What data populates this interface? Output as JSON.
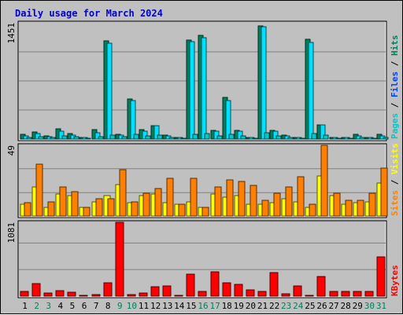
{
  "title": "Daily usage for March 2024",
  "colors": {
    "background": "#c0c0c0",
    "title": "#0000ff",
    "hits": "#00805c",
    "files": "#00e0ff",
    "pages": "#00c8c8",
    "visits": "#ffff00",
    "sites": "#ff8000",
    "kbytes": "#ff0000",
    "weekend_label": "#00805c",
    "weekday_label": "#000000"
  },
  "chart_data": [
    {
      "type": "bar",
      "panel": "hits-files-pages",
      "ymax_label": "1451",
      "ylim": [
        0,
        1451
      ],
      "legend": [
        {
          "text": "Pages",
          "color": "#00c8c8"
        },
        {
          "text": "Files",
          "color": "#0040ff"
        },
        {
          "text": "Hits",
          "color": "#00805c"
        }
      ],
      "categories": [
        "1",
        "2",
        "3",
        "4",
        "5",
        "6",
        "7",
        "8",
        "9",
        "10",
        "11",
        "12",
        "13",
        "14",
        "15",
        "16",
        "17",
        "18",
        "19",
        "20",
        "21",
        "22",
        "23",
        "24",
        "25",
        "26",
        "27",
        "28",
        "29",
        "30",
        "31"
      ],
      "series": [
        {
          "name": "Hits",
          "values": [
            60,
            90,
            40,
            130,
            70,
            20,
            120,
            1230,
            60,
            500,
            120,
            170,
            50,
            20,
            1240,
            1290,
            110,
            520,
            110,
            20,
            1410,
            110,
            50,
            20,
            1250,
            180,
            20,
            20,
            60,
            20,
            60
          ]
        },
        {
          "name": "Files",
          "values": [
            40,
            70,
            30,
            100,
            50,
            15,
            80,
            1200,
            50,
            480,
            100,
            170,
            40,
            15,
            1220,
            1260,
            100,
            480,
            100,
            15,
            1400,
            100,
            40,
            15,
            1210,
            180,
            15,
            15,
            40,
            15,
            40
          ]
        },
        {
          "name": "Pages",
          "values": [
            20,
            30,
            15,
            40,
            25,
            8,
            30,
            50,
            25,
            60,
            40,
            50,
            20,
            8,
            60,
            70,
            40,
            60,
            40,
            8,
            80,
            40,
            20,
            8,
            70,
            50,
            8,
            8,
            20,
            8,
            20
          ]
        }
      ]
    },
    {
      "type": "bar",
      "panel": "visits-sites",
      "ymax_label": "49",
      "ylim": [
        0,
        49
      ],
      "legend": [
        {
          "text": "Sites",
          "color": "#ff8000"
        },
        {
          "text": "Visits",
          "color": "#ffff00"
        }
      ],
      "categories": [
        "1",
        "2",
        "3",
        "4",
        "5",
        "6",
        "7",
        "8",
        "9",
        "10",
        "11",
        "12",
        "13",
        "14",
        "15",
        "16",
        "17",
        "18",
        "19",
        "20",
        "21",
        "22",
        "23",
        "24",
        "25",
        "26",
        "27",
        "28",
        "29",
        "30",
        "31"
      ],
      "series": [
        {
          "name": "Visits",
          "values": [
            8,
            20,
            6,
            15,
            14,
            6,
            10,
            14,
            22,
            9,
            14,
            15,
            9,
            8,
            10,
            6,
            15,
            13,
            14,
            8,
            8,
            9,
            12,
            10,
            6,
            28,
            14,
            8,
            9,
            10,
            23
          ]
        },
        {
          "name": "Sites",
          "values": [
            9,
            36,
            10,
            20,
            17,
            6,
            12,
            12,
            32,
            10,
            16,
            19,
            26,
            8,
            26,
            6,
            20,
            25,
            24,
            21,
            11,
            16,
            20,
            27,
            8,
            49,
            16,
            11,
            11,
            16,
            33
          ]
        }
      ]
    },
    {
      "type": "bar",
      "panel": "kbytes",
      "ymax_label": "1081",
      "ylim": [
        0,
        1081
      ],
      "legend": [
        {
          "text": "KBytes",
          "color": "#ff0000"
        }
      ],
      "categories": [
        "1",
        "2",
        "3",
        "4",
        "5",
        "6",
        "7",
        "8",
        "9",
        "10",
        "11",
        "12",
        "13",
        "14",
        "15",
        "16",
        "17",
        "18",
        "19",
        "20",
        "21",
        "22",
        "23",
        "24",
        "25",
        "26",
        "27",
        "28",
        "29",
        "30",
        "31"
      ],
      "series": [
        {
          "name": "KBytes",
          "values": [
            70,
            180,
            50,
            80,
            60,
            15,
            25,
            200,
            1081,
            20,
            50,
            140,
            150,
            15,
            320,
            70,
            360,
            190,
            170,
            90,
            70,
            350,
            40,
            150,
            15,
            290,
            70,
            70,
            70,
            70,
            580
          ]
        }
      ]
    }
  ],
  "x_labels": [
    {
      "text": "1",
      "weekend": false
    },
    {
      "text": "2",
      "weekend": true
    },
    {
      "text": "3",
      "weekend": true
    },
    {
      "text": "4",
      "weekend": false
    },
    {
      "text": "5",
      "weekend": false
    },
    {
      "text": "6",
      "weekend": false
    },
    {
      "text": "7",
      "weekend": false
    },
    {
      "text": "8",
      "weekend": false
    },
    {
      "text": "9",
      "weekend": true
    },
    {
      "text": "10",
      "weekend": true
    },
    {
      "text": "11",
      "weekend": false
    },
    {
      "text": "12",
      "weekend": false
    },
    {
      "text": "13",
      "weekend": false
    },
    {
      "text": "14",
      "weekend": false
    },
    {
      "text": "15",
      "weekend": false
    },
    {
      "text": "16",
      "weekend": true
    },
    {
      "text": "17",
      "weekend": true
    },
    {
      "text": "18",
      "weekend": false
    },
    {
      "text": "19",
      "weekend": false
    },
    {
      "text": "20",
      "weekend": false
    },
    {
      "text": "21",
      "weekend": false
    },
    {
      "text": "22",
      "weekend": false
    },
    {
      "text": "23",
      "weekend": true
    },
    {
      "text": "24",
      "weekend": true
    },
    {
      "text": "25",
      "weekend": false
    },
    {
      "text": "26",
      "weekend": false
    },
    {
      "text": "27",
      "weekend": false
    },
    {
      "text": "28",
      "weekend": false
    },
    {
      "text": "29",
      "weekend": false
    },
    {
      "text": "30",
      "weekend": true
    },
    {
      "text": "31",
      "weekend": true
    }
  ]
}
